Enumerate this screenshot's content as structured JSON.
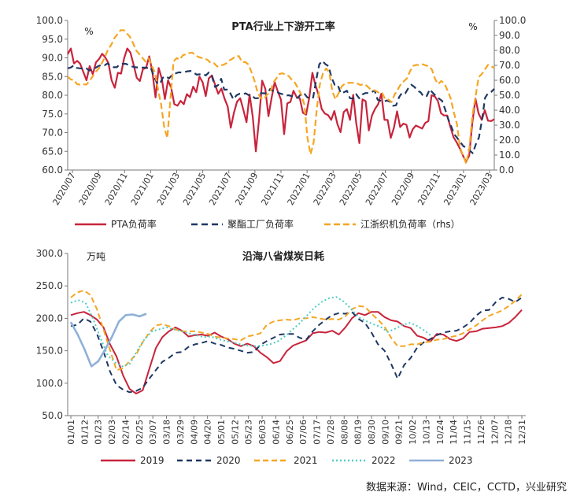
{
  "chart_data": [
    {
      "type": "line",
      "title": "PTA行业上下游开工率",
      "unit_left": "%",
      "unit_right": "%",
      "ylim_left": [
        60,
        100
      ],
      "ylim_right": [
        0,
        100
      ],
      "yticks_left": [
        "60.0",
        "65.0",
        "70.0",
        "75.0",
        "80.0",
        "85.0",
        "90.0",
        "95.0",
        "100.0"
      ],
      "yticks_right": [
        "0.0",
        "10.0",
        "20.0",
        "30.0",
        "40.0",
        "50.0",
        "60.0",
        "70.0",
        "80.0",
        "90.0",
        "100.0"
      ],
      "x_labels": [
        "2020/07",
        "2020/09",
        "2020/11",
        "2021/01",
        "2021/03",
        "2021/05",
        "2021/07",
        "2021/09",
        "2021/11",
        "2022/01",
        "2022/03",
        "2022/05",
        "2022/07",
        "2022/09",
        "2022/11",
        "2023/01",
        "2023/03"
      ],
      "grid": false,
      "legend_position": "bottom",
      "series": [
        {
          "name": "PTA负荷率",
          "axis": "left",
          "color": "#c8243c",
          "dash": "solid",
          "values": [
            91,
            92.5,
            88.5,
            89.2,
            88.4,
            86.2,
            84,
            87.8,
            85.6,
            88.8,
            89.7,
            91.1,
            90.1,
            88.6,
            84,
            82,
            86,
            85.8,
            89.9,
            92.5,
            91.4,
            88.2,
            84.7,
            83.8,
            87,
            87.3,
            90.4,
            86.3,
            79.4,
            87.3,
            84.4,
            79,
            84,
            82,
            77.6,
            77.2,
            78.5,
            77.6,
            80.3,
            79.5,
            82.3,
            80.8,
            85,
            83.5,
            79.8,
            84.5,
            85.3,
            82.8,
            80.4,
            81.8,
            79.1,
            77,
            71.3,
            75.3,
            78.3,
            79.2,
            76.1,
            72.8,
            80.2,
            74.3,
            65,
            73.5,
            83.9,
            81.7,
            74.4,
            79.2,
            83.5,
            81,
            78.8,
            69.6,
            77.8,
            78.2,
            81.2,
            79.5,
            79.2,
            75.3,
            74.8,
            79.3,
            86,
            82.7,
            80.1,
            76.3,
            75.1,
            74.7,
            73.4,
            75.8,
            72.3,
            70.1,
            75.5,
            76.3,
            73.4,
            80.1,
            72.6,
            67.2,
            78.9,
            78.4,
            70.6,
            74.6,
            76.4,
            77.6,
            80.4,
            73.4,
            73.4,
            68.6,
            71.3,
            75.7,
            71.5,
            72.4,
            72.1,
            68.7,
            70.9,
            71.9,
            71.5,
            71.1,
            72.6,
            73.1,
            80,
            79.7,
            78.5,
            75.2,
            74.6,
            74.6,
            71.6,
            68.8,
            67.4,
            65.8,
            63.9,
            62.2,
            63.8,
            72.6,
            79.1,
            75.1,
            73.4,
            76,
            73.2,
            73.1,
            73.6
          ]
        },
        {
          "name": "聚酯工厂负荷率",
          "axis": "left",
          "color": "#1f3864",
          "dash": "8,5",
          "values": [
            87.2,
            87.4,
            88,
            87.3,
            87.2,
            87.1,
            87.3,
            86.6,
            86.9,
            87.3,
            87.8,
            88.1,
            88,
            88.5,
            87.8,
            87.5,
            87.5,
            88.3,
            88.4,
            88.4,
            88,
            87.7,
            87.5,
            87.4,
            87.4,
            87.4,
            87.3,
            87.5,
            85.2,
            83.4,
            83,
            84.7,
            85.1,
            84.5,
            85.4,
            85.8,
            86.1,
            86.1,
            86.2,
            86.4,
            86.5,
            86.1,
            85.5,
            85.6,
            85.7,
            85.3,
            86.1,
            85.1,
            82.2,
            82.7,
            84.4,
            81.5,
            81.5,
            80.5,
            78.9,
            80,
            80.4,
            80.3,
            80.5,
            80,
            79.9,
            79.2,
            79.2,
            80.6,
            80.5,
            80.6,
            81.7,
            81.1,
            81,
            80.5,
            80.3,
            79.9,
            80,
            79.8,
            79.3,
            79.3,
            80.3,
            80.6,
            79.5,
            79.1,
            79.4,
            84.2,
            88.3,
            89.2,
            88.3,
            87.8,
            84.7,
            82.8,
            82.8,
            80.5,
            80.8,
            81.2,
            79.2,
            79.1,
            80.3,
            79.2,
            80.2,
            80.6,
            80.6,
            80.8,
            81.3,
            78.8,
            78.5,
            78.3,
            78.6,
            78.3,
            77.2,
            77.3,
            79.5,
            80.7,
            80.5,
            81.9,
            82.8,
            82.2,
            81.2,
            80.8,
            79.6,
            79.8,
            81.6,
            80.6,
            79.8,
            79.1,
            78.5,
            76.2,
            73.6,
            71.6,
            69.5,
            68.5,
            67.4,
            66.3,
            66.1,
            65.2,
            64.5,
            66.9,
            68.7,
            73.4,
            79.3,
            80.6,
            80.9,
            81.7
          ]
        },
        {
          "name": "江浙织机负荷率（rhs）",
          "axis": "right",
          "color": "#f5a623",
          "dash": "8,4",
          "values": [
            62.5,
            60.5,
            60.2,
            57.4,
            57.1,
            57.3,
            57.1,
            59.5,
            62.5,
            65.7,
            67.9,
            71.5,
            75.9,
            80.7,
            83.8,
            88.1,
            90.9,
            93.5,
            93.5,
            91.3,
            89.1,
            84.9,
            80,
            77.5,
            75.1,
            72.5,
            74.7,
            69.9,
            65.2,
            54.2,
            43.7,
            28.9,
            21.3,
            48.1,
            72.6,
            74.9,
            73.9,
            76.8,
            77.4,
            78.2,
            78.5,
            76.8,
            75.6,
            75,
            74.6,
            73.5,
            71.4,
            71.4,
            69.2,
            70,
            70.3,
            71.4,
            73.3,
            74.5,
            76.2,
            76.1,
            72.1,
            72.3,
            70.6,
            65.7,
            59.6,
            51.9,
            48,
            47.2,
            50.4,
            51.6,
            58.3,
            61.3,
            64.2,
            64.7,
            63.8,
            62.8,
            60.3,
            58.3,
            54.5,
            50.5,
            43.8,
            21.7,
            10.5,
            18.5,
            40.9,
            57.6,
            64.7,
            67.9,
            65.4,
            52.6,
            47.2,
            51.4,
            55.9,
            57.7,
            58.2,
            58.3,
            58.3,
            57.9,
            56.8,
            57.4,
            56.4,
            54.4,
            53.6,
            52.9,
            51.5,
            51.5,
            47.2,
            47.1,
            45.4,
            50.5,
            53.8,
            57.4,
            59.4,
            61.4,
            66.3,
            69.7,
            70.3,
            70.1,
            70.7,
            69.9,
            69.4,
            67,
            60.8,
            57.4,
            59.6,
            57.8,
            53.1,
            47.9,
            38.6,
            30.9,
            15,
            9.6,
            4.2,
            14.8,
            36.8,
            49.5,
            62.1,
            64.2,
            67.3,
            70.3,
            69.5,
            68.2
          ]
        }
      ]
    },
    {
      "type": "line",
      "title": "沿海八省煤炭日耗",
      "unit_left": "万吨",
      "ylim": [
        50,
        300
      ],
      "yticks": [
        "50.0",
        "100.0",
        "150.0",
        "200.0",
        "250.0",
        "300.0"
      ],
      "x_labels": [
        "01/01",
        "01/12",
        "01/23",
        "02/03",
        "02/14",
        "02/25",
        "03/07",
        "03/18",
        "03/29",
        "04/09",
        "04/20",
        "05/01",
        "05/12",
        "05/23",
        "06/03",
        "06/14",
        "06/25",
        "07/06",
        "07/17",
        "07/28",
        "08/08",
        "08/19",
        "08/30",
        "09/10",
        "09/21",
        "10/02",
        "10/13",
        "10/24",
        "11/04",
        "11/15",
        "11/26",
        "12/07",
        "12/18",
        "12/31"
      ],
      "grid": false,
      "legend_position": "bottom",
      "series": [
        {
          "name": "2019",
          "color": "#c8243c",
          "dash": "solid",
          "values": [
            205,
            208,
            210,
            205,
            198,
            186,
            160,
            141,
            112,
            91,
            84,
            89,
            122,
            154,
            171,
            180,
            186,
            181,
            172,
            174,
            175,
            173,
            178,
            172,
            168,
            161,
            157,
            161,
            157,
            147,
            140,
            131,
            134,
            149,
            158,
            162,
            166,
            177,
            179,
            178,
            181,
            175,
            186,
            200,
            208,
            205,
            210,
            210,
            202,
            197,
            195,
            188,
            185,
            173,
            170,
            164,
            176,
            175,
            168,
            165,
            169,
            179,
            180,
            184,
            185,
            186,
            188,
            193,
            202,
            213
          ]
        },
        {
          "name": "2020",
          "color": "#1f3864",
          "dash": "7,5",
          "values": [
            188,
            190,
            200,
            195,
            176,
            149,
            118,
            97,
            90,
            86,
            88,
            93,
            107,
            120,
            133,
            139,
            147,
            148,
            156,
            160,
            162,
            165,
            161,
            159,
            155,
            153,
            150,
            147,
            148,
            159,
            165,
            170,
            175,
            176,
            176,
            170,
            167,
            180,
            190,
            198,
            205,
            208,
            207,
            210,
            199,
            193,
            178,
            160,
            150,
            130,
            107,
            128,
            139,
            155,
            163,
            168,
            174,
            178,
            180,
            181,
            186,
            193,
            204,
            212,
            213,
            225,
            232,
            230,
            225,
            232
          ]
        },
        {
          "name": "2021",
          "color": "#f5a623",
          "dash": "7,4",
          "values": [
            232,
            240,
            243,
            236,
            214,
            183,
            151,
            120,
            123,
            134,
            144,
            163,
            178,
            189,
            191,
            188,
            183,
            180,
            180,
            180,
            178,
            176,
            172,
            170,
            169,
            168,
            166,
            172,
            174,
            177,
            190,
            195,
            197,
            198,
            197,
            200,
            200,
            202,
            200,
            198,
            199,
            198,
            203,
            214,
            219,
            218,
            207,
            198,
            187,
            170,
            157,
            157,
            160,
            160,
            163,
            164,
            167,
            168,
            171,
            173,
            177,
            183,
            189,
            197,
            204,
            208,
            212,
            219,
            227,
            237
          ]
        },
        {
          "name": "2022",
          "color": "#4ecdc4",
          "dash": "2,3",
          "values": [
            224,
            228,
            224,
            200,
            170,
            143,
            132,
            126,
            130,
            150,
            168,
            180,
            183,
            186,
            183,
            180,
            177,
            174,
            171,
            172,
            168,
            165,
            163,
            160,
            158,
            157,
            158,
            160,
            164,
            172,
            182,
            192,
            204,
            216,
            225,
            231,
            233,
            226,
            215,
            202,
            196,
            191,
            187,
            179,
            184,
            190,
            193,
            188,
            181,
            172
          ]
        },
        {
          "name": "2023",
          "color": "#8fb0d8",
          "dash": "solid",
          "values": [
            194,
            175,
            152,
            126,
            134,
            152,
            172,
            195,
            205,
            206,
            203,
            207
          ]
        }
      ]
    }
  ],
  "source": "数据来源：Wind，CEIC，CCTD，兴业研究"
}
